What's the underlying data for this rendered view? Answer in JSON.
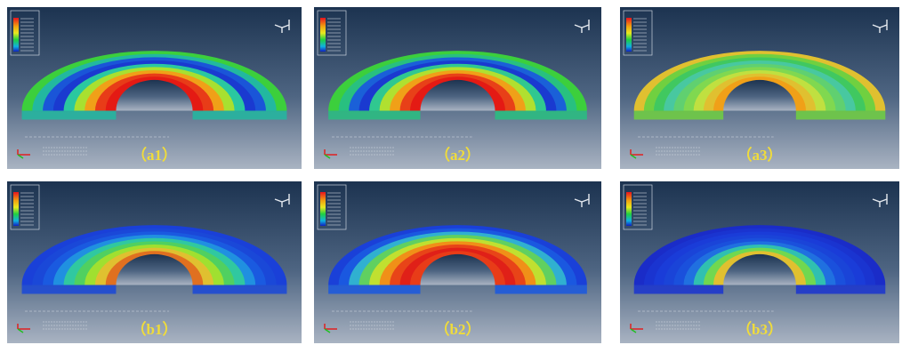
{
  "panels": [
    {
      "label": "（a1）"
    },
    {
      "label": "（a2）"
    },
    {
      "label": "（a3）"
    },
    {
      "label": "（b1）"
    },
    {
      "label": "（b2）"
    },
    {
      "label": "（b3）"
    }
  ]
}
